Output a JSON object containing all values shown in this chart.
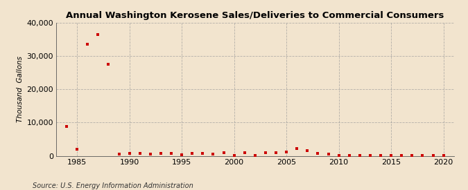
{
  "title": "Annual Washington Kerosene Sales/Deliveries to Commercial Consumers",
  "ylabel": "Thousand  Gallons",
  "source": "Source: U.S. Energy Information Administration",
  "background_color": "#f2e4ce",
  "plot_background_color": "#f2e4ce",
  "marker_color": "#cc0000",
  "xlim": [
    1983,
    2021
  ],
  "ylim": [
    0,
    40000
  ],
  "yticks": [
    0,
    10000,
    20000,
    30000,
    40000
  ],
  "xticks": [
    1985,
    1990,
    1995,
    2000,
    2005,
    2010,
    2015,
    2020
  ],
  "years": [
    1984,
    1985,
    1986,
    1987,
    1988,
    1989,
    1990,
    1991,
    1992,
    1993,
    1994,
    1995,
    1996,
    1997,
    1998,
    1999,
    2000,
    2001,
    2002,
    2003,
    2004,
    2005,
    2006,
    2007,
    2008,
    2009,
    2010,
    2011,
    2012,
    2013,
    2014,
    2015,
    2016,
    2017,
    2018,
    2019,
    2020
  ],
  "values": [
    8800,
    1900,
    33500,
    36500,
    27500,
    500,
    700,
    700,
    500,
    700,
    700,
    400,
    700,
    700,
    500,
    900,
    200,
    1000,
    200,
    900,
    1000,
    1200,
    2200,
    1500,
    700,
    500,
    200,
    100,
    200,
    100,
    200,
    200,
    100,
    100,
    100,
    100,
    100
  ]
}
